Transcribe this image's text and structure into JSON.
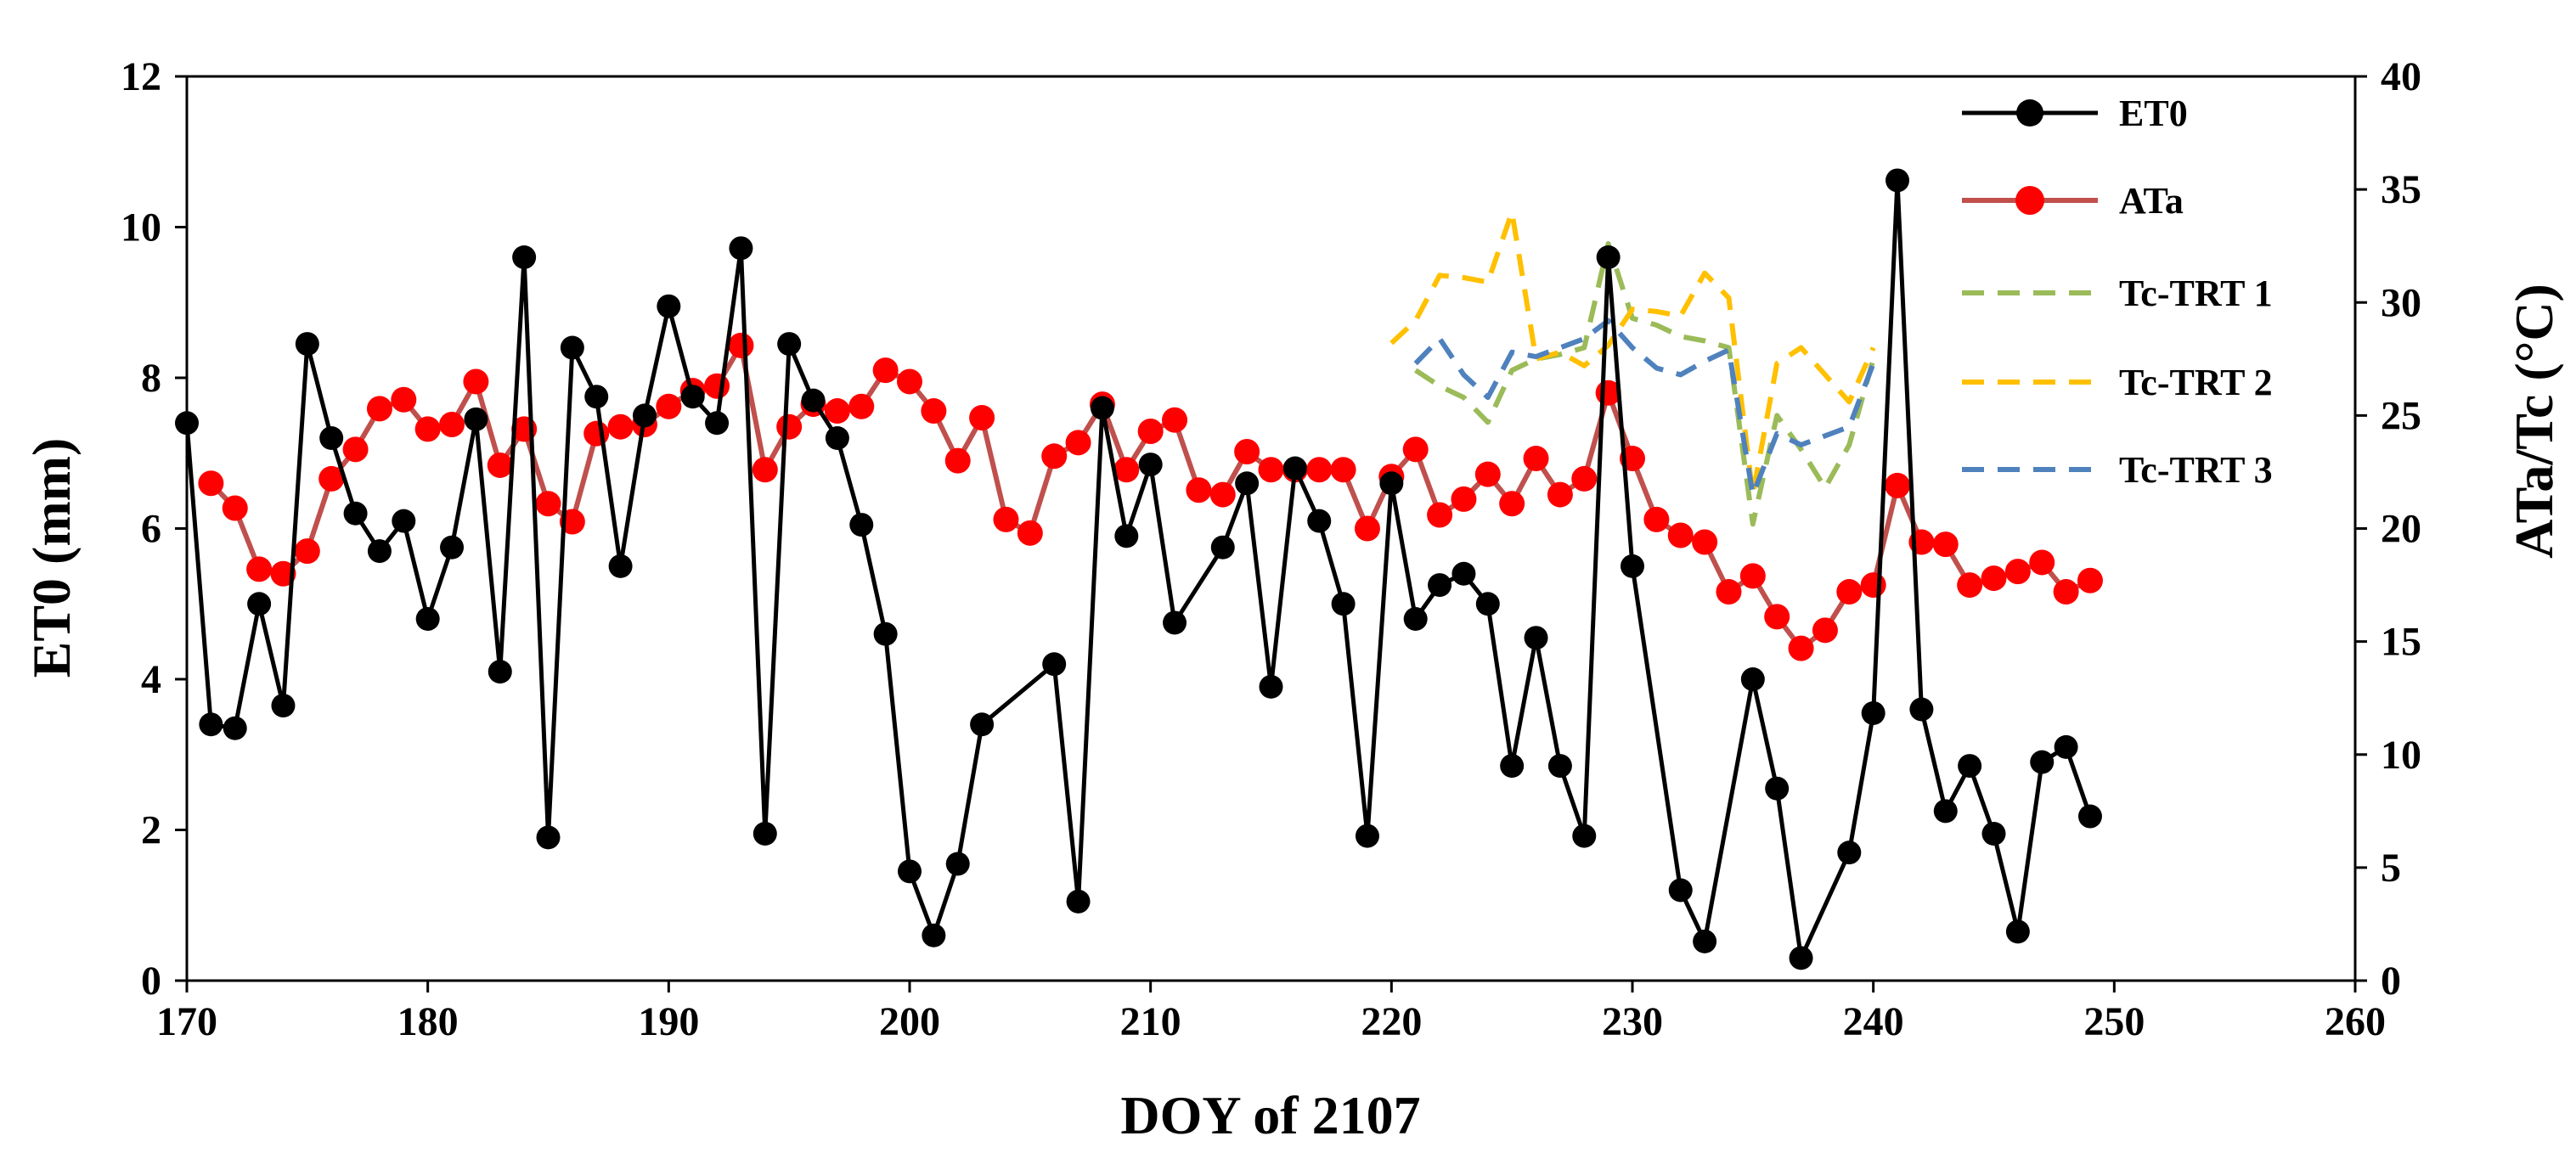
{
  "colors": {
    "et0": "#000000",
    "ata_line": "#c0504d",
    "ata_marker": "#ff0000",
    "trt1": "#9bbb59",
    "trt2": "#ffc000",
    "trt3": "#4f81bd"
  },
  "chart_data": {
    "type": "line",
    "title": "",
    "xlabel": "DOY of 2107",
    "ylabel_left": "ET0 (mm)",
    "ylabel_right": "ATa/Tc  (°C)",
    "xlim": [
      170,
      260
    ],
    "ylim_left": [
      0,
      12
    ],
    "ylim_right": [
      0,
      40
    ],
    "x_ticks": [
      170,
      180,
      190,
      200,
      210,
      220,
      230,
      240,
      250,
      260
    ],
    "y_ticks_left": [
      0,
      2,
      4,
      6,
      8,
      10,
      12
    ],
    "y_ticks_right": [
      0,
      5,
      10,
      15,
      20,
      25,
      30,
      35,
      40
    ],
    "grid": false,
    "legend_position": "top-right",
    "series": [
      {
        "name": "ET0",
        "axis": "left",
        "style": "line-marker",
        "x": [
          170,
          171,
          172,
          173,
          174,
          175,
          176,
          177,
          178,
          179,
          180,
          181,
          182,
          183,
          184,
          185,
          186,
          187,
          188,
          189,
          190,
          191,
          192,
          193,
          194,
          195,
          196,
          197,
          198,
          199,
          200,
          201,
          202,
          203,
          206,
          207,
          208,
          209,
          210,
          211,
          213,
          214,
          215,
          216,
          217,
          218,
          219,
          220,
          221,
          222,
          223,
          224,
          225,
          226,
          227,
          228,
          229,
          230,
          232,
          233,
          235,
          236,
          237,
          239,
          240,
          241,
          242,
          243,
          244,
          245,
          246,
          247,
          248,
          249
        ],
        "values": [
          7.4,
          3.4,
          3.35,
          5.0,
          3.65,
          8.45,
          7.2,
          6.2,
          5.7,
          6.1,
          4.8,
          5.75,
          7.45,
          4.1,
          9.6,
          1.9,
          8.4,
          7.75,
          5.5,
          7.5,
          8.95,
          7.75,
          7.4,
          9.72,
          1.95,
          8.45,
          7.7,
          7.2,
          6.05,
          4.6,
          1.45,
          0.6,
          1.55,
          3.4,
          4.2,
          1.05,
          7.6,
          5.9,
          6.85,
          4.75,
          5.75,
          6.6,
          3.9,
          6.8,
          6.1,
          5.0,
          1.92,
          6.6,
          4.8,
          5.25,
          5.4,
          5.0,
          2.85,
          4.55,
          2.85,
          1.92,
          9.6,
          5.5,
          1.2,
          0.52,
          4.0,
          2.55,
          0.3,
          1.7,
          3.55,
          10.62,
          3.6,
          2.25,
          2.85,
          1.95,
          0.65,
          2.9,
          3.1,
          2.18
        ]
      },
      {
        "name": "ATa",
        "axis": "right",
        "style": "line-marker",
        "x": [
          171,
          172,
          173,
          174,
          175,
          176,
          177,
          178,
          179,
          180,
          181,
          182,
          183,
          184,
          185,
          186,
          187,
          188,
          189,
          190,
          191,
          192,
          193,
          194,
          195,
          196,
          197,
          198,
          199,
          200,
          201,
          202,
          203,
          204,
          205,
          206,
          207,
          208,
          209,
          210,
          211,
          212,
          213,
          214,
          215,
          216,
          217,
          218,
          219,
          220,
          221,
          222,
          223,
          224,
          225,
          226,
          227,
          228,
          229,
          230,
          231,
          232,
          233,
          234,
          235,
          236,
          237,
          238,
          239,
          240,
          241,
          242,
          243,
          244,
          245,
          246,
          247,
          248,
          249
        ],
        "values": [
          22,
          20.9,
          18.2,
          18,
          19,
          22.2,
          23.5,
          25.3,
          25.7,
          24.4,
          24.6,
          26.5,
          22.8,
          24.4,
          21.1,
          20.3,
          24.2,
          24.5,
          24.6,
          25.4,
          26.1,
          26.3,
          28.1,
          22.6,
          24.5,
          25.5,
          25.2,
          25.4,
          27,
          26.5,
          25.2,
          23,
          24.9,
          20.4,
          19.8,
          23.2,
          23.8,
          25.5,
          22.6,
          24.3,
          24.8,
          21.7,
          21.5,
          23.4,
          22.6,
          22.6,
          22.6,
          22.6,
          20,
          22.3,
          23.5,
          20.6,
          21.3,
          22.4,
          21.1,
          23.1,
          21.5,
          22.2,
          26,
          23.1,
          20.4,
          19.7,
          19.4,
          17.2,
          17.9,
          16.1,
          14.7,
          15.5,
          17.2,
          17.5,
          21.9,
          19.4,
          19.3,
          17.5,
          17.8,
          18.1,
          18.5,
          17.2,
          17.7
        ]
      },
      {
        "name": "Tc-TRT 1",
        "axis": "right",
        "style": "dashed",
        "x": [
          221,
          222,
          223,
          224,
          225,
          226,
          227,
          228,
          229,
          230,
          231,
          232,
          233,
          234,
          235,
          236,
          237,
          238,
          239,
          240
        ],
        "values": [
          27,
          26.3,
          25.8,
          24.7,
          27,
          27.5,
          27.7,
          28,
          32.6,
          29.3,
          29,
          28.5,
          28.3,
          28,
          20.2,
          25,
          23.5,
          21.8,
          23.7,
          27.5
        ]
      },
      {
        "name": "Tc-TRT 2",
        "axis": "right",
        "style": "dashed",
        "x": [
          220,
          221,
          222,
          223,
          224,
          225,
          226,
          227,
          228,
          229,
          230,
          231,
          232,
          233,
          234,
          235,
          236,
          237,
          238,
          239,
          240
        ],
        "values": [
          28.2,
          29.2,
          31.2,
          31.1,
          30.9,
          34,
          27.5,
          27.8,
          27.2,
          28.1,
          29.7,
          29.6,
          29.4,
          31.3,
          30.2,
          21.5,
          27.3,
          28,
          26.8,
          25.6,
          28
        ]
      },
      {
        "name": "Tc-TRT 3",
        "axis": "right",
        "style": "dashed",
        "x": [
          221,
          222,
          223,
          224,
          225,
          226,
          227,
          228,
          229,
          230,
          231,
          232,
          233,
          234,
          235,
          236,
          237,
          238,
          239,
          240
        ],
        "values": [
          27.3,
          28.4,
          26.8,
          25.8,
          27.8,
          27.6,
          28,
          28.4,
          29.2,
          28,
          27.1,
          26.8,
          27.4,
          27.9,
          21.5,
          24.2,
          23.7,
          24.1,
          24.5,
          27.3
        ]
      }
    ]
  }
}
